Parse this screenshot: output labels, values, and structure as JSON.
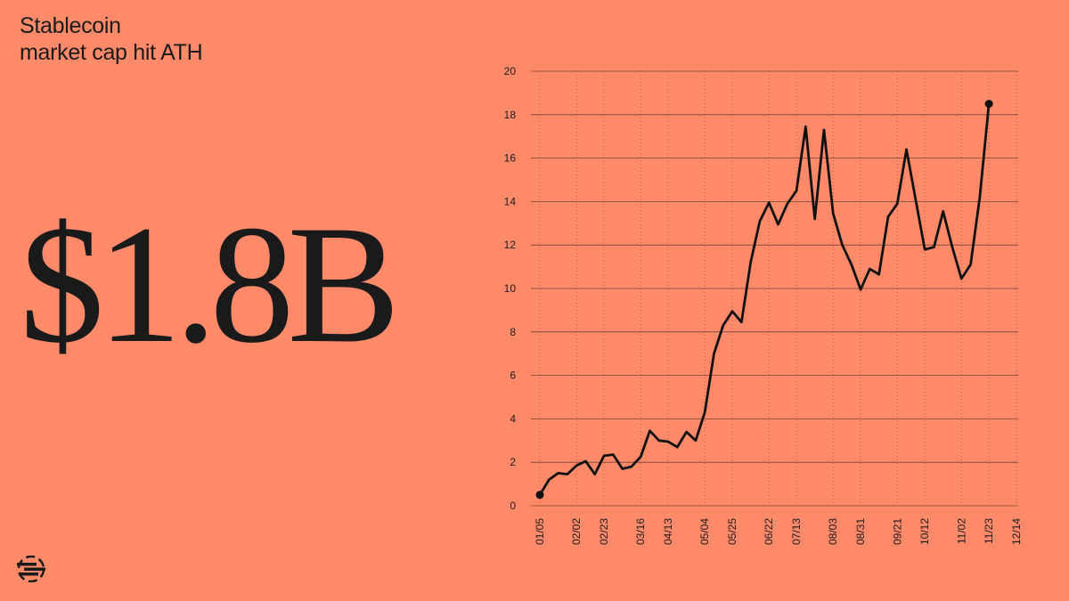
{
  "headline": [
    "Stablecoin",
    "market cap hit ATH"
  ],
  "big_value": "$1.8B",
  "chart_data": {
    "type": "line",
    "categories": [
      "01/05",
      null,
      null,
      null,
      "02/02",
      null,
      null,
      "02/23",
      null,
      null,
      null,
      "03/16",
      null,
      null,
      "04/13",
      null,
      null,
      null,
      "05/04",
      null,
      null,
      "05/25",
      null,
      null,
      null,
      "06/22",
      null,
      null,
      "07/13",
      null,
      null,
      null,
      "08/03",
      null,
      null,
      "08/31",
      null,
      null,
      null,
      "09/21",
      null,
      null,
      "10/12",
      null,
      null,
      null,
      "11/02",
      null,
      null,
      "11/23",
      null,
      null,
      "12/14"
    ],
    "series": [
      {
        "name": null,
        "color": "#111111",
        "values": [
          0.5,
          1.2,
          1.5,
          1.45,
          1.85,
          2.05,
          1.45,
          2.3,
          2.35,
          1.7,
          1.8,
          2.25,
          3.45,
          3.0,
          2.95,
          2.7,
          3.4,
          3.0,
          4.3,
          7.0,
          8.3,
          8.95,
          8.45,
          11.2,
          13.1,
          13.95,
          12.95,
          13.9,
          14.5,
          17.45,
          13.2,
          17.3,
          13.45,
          12.0,
          11.1,
          9.95,
          10.9,
          10.65,
          13.3,
          13.9,
          16.4,
          14.1,
          11.8,
          11.9,
          13.55,
          11.9,
          10.45,
          11.1,
          14.2,
          18.5,
          null,
          null,
          null
        ]
      }
    ],
    "ylim": [
      0,
      20
    ],
    "yticks": [
      0,
      2,
      4,
      6,
      8,
      10,
      12,
      14,
      16,
      18,
      20
    ],
    "grid": true,
    "endpoint_markers": true
  }
}
